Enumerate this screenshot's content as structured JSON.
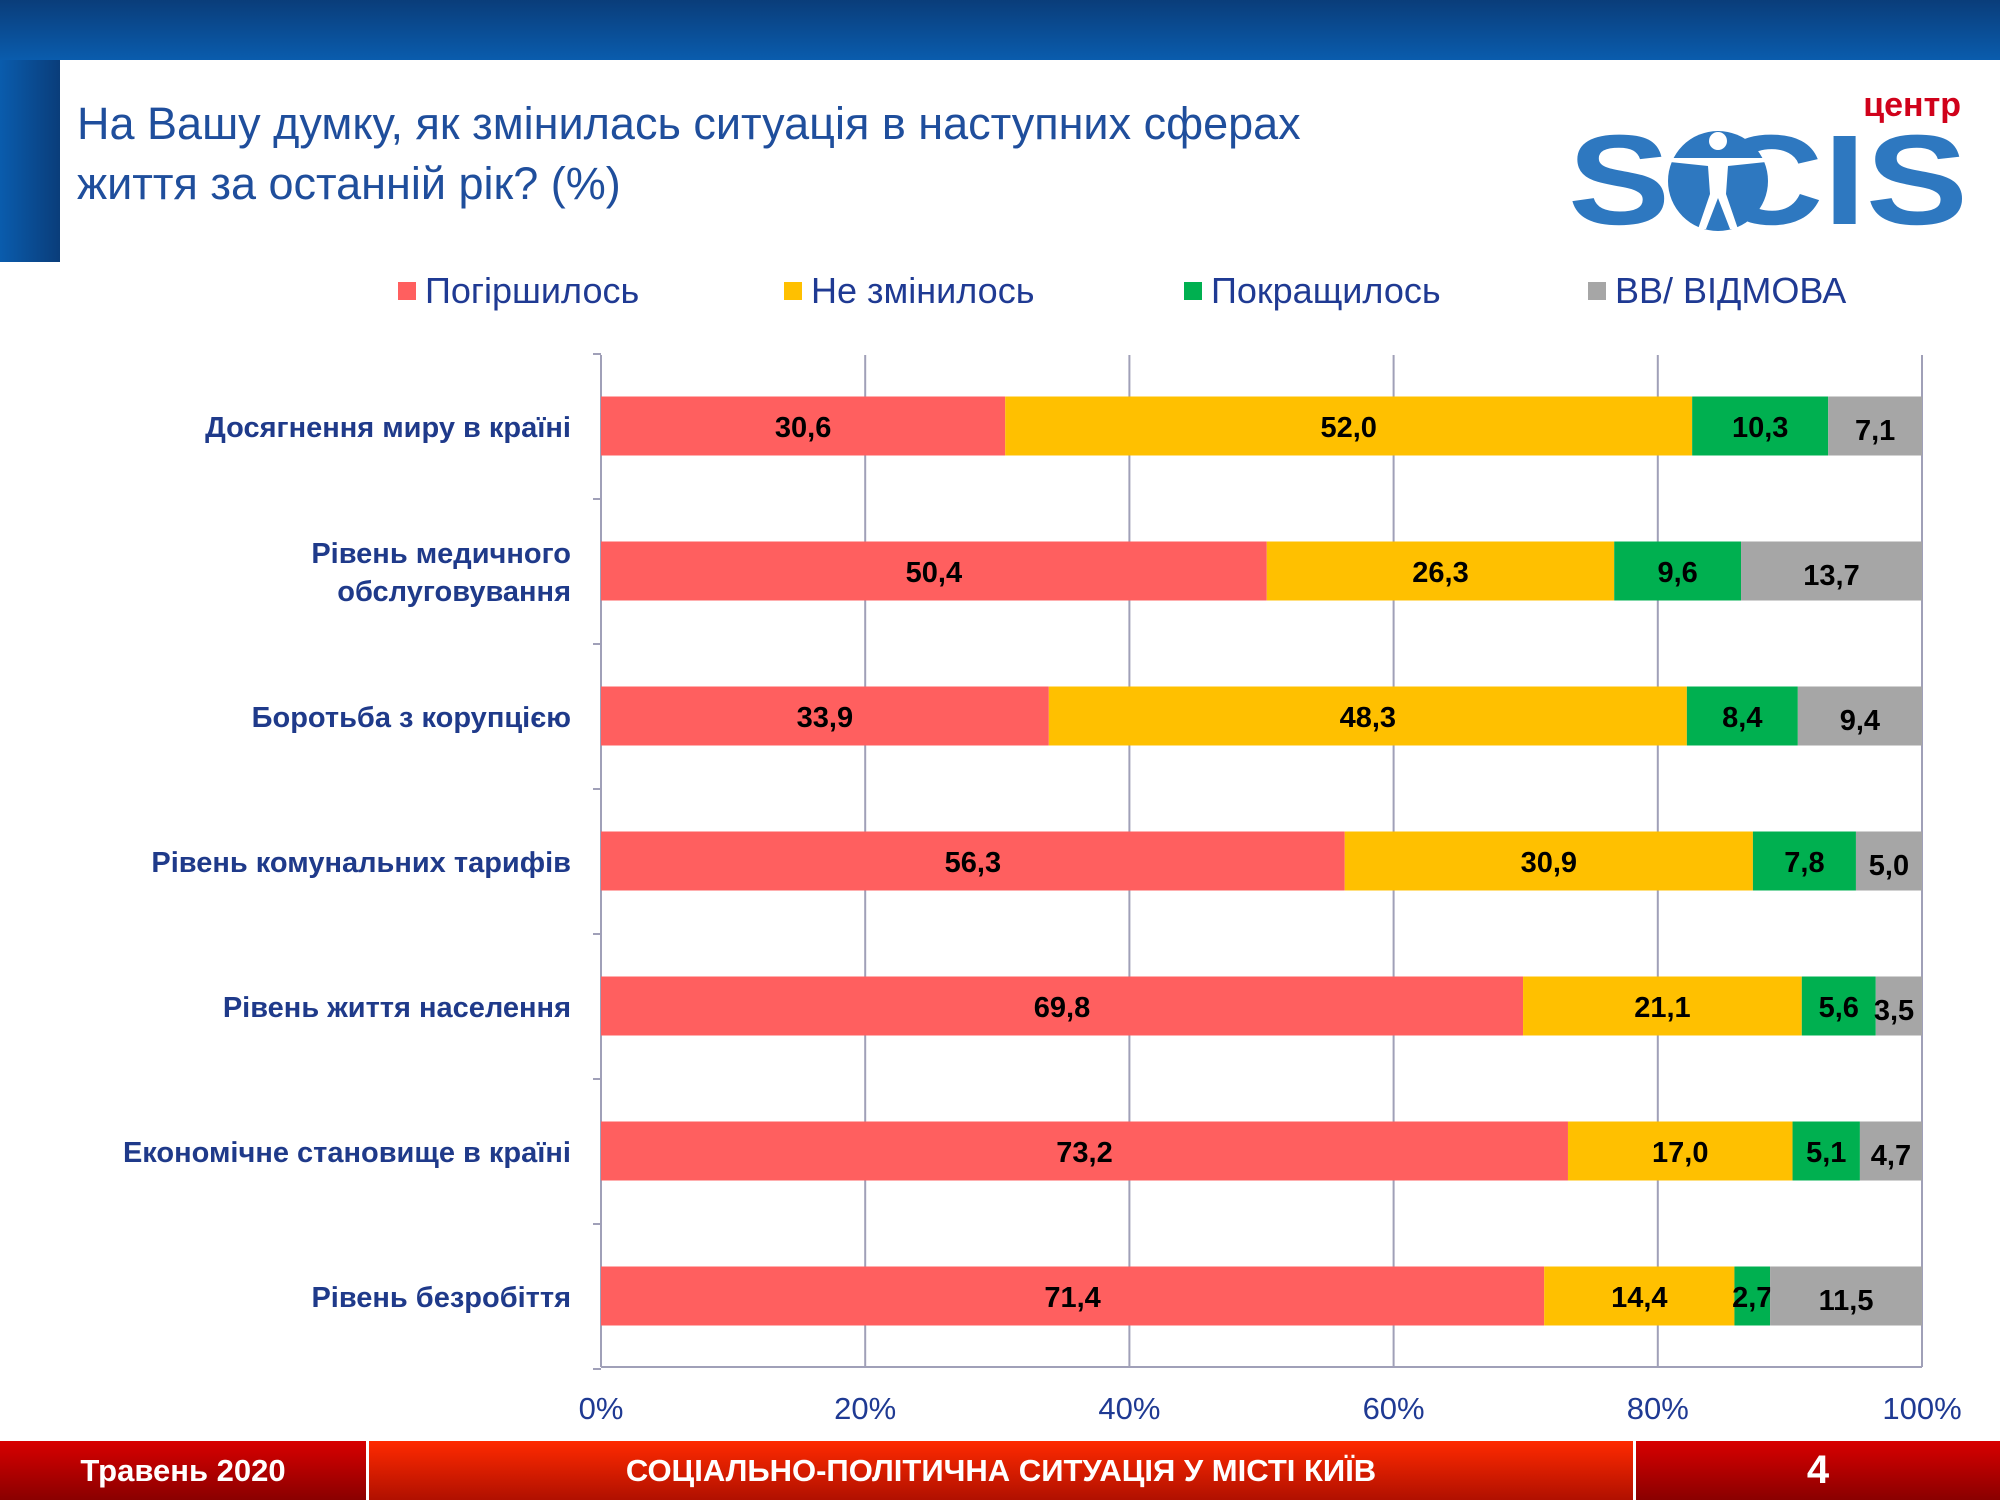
{
  "header": {
    "title_line1": "На Вашу думку, як змінилась ситуація в наступних сферах",
    "title_line2": "життя за останній рік? (%)"
  },
  "logo": {
    "text_main": "SOCIS",
    "text_top": "центр",
    "colors": {
      "main": "#2e78c0",
      "top": "#d0021b"
    }
  },
  "footer": {
    "date": "Травень 2020",
    "subject": "СОЦІАЛЬНО-ПОЛІТИЧНА СИТУАЦІЯ У МІСТІ КИЇВ",
    "page": "4"
  },
  "chart_data": {
    "type": "bar",
    "orientation": "horizontal",
    "stacked": "percent",
    "title": "",
    "categories": [
      "Досягнення миру в країні",
      "Рівень медичного обслуговування",
      "Боротьба з корупцією",
      "Рівень комунальних тарифів",
      "Рівень життя населення",
      "Економічне становище в країні",
      "Рівень безробіття"
    ],
    "series": [
      {
        "name": "Погіршилось",
        "color": "#ff5f5f",
        "values": [
          30.6,
          50.4,
          33.9,
          56.3,
          69.8,
          73.2,
          71.4
        ],
        "labels": [
          "30,6",
          "50,4",
          "33,9",
          "56,3",
          "69,8",
          "73,2",
          "71,4"
        ]
      },
      {
        "name": "Не змінилось",
        "color": "#ffc000",
        "values": [
          52.0,
          26.3,
          48.3,
          30.9,
          21.1,
          17.0,
          14.4
        ],
        "labels": [
          "52,0",
          "26,3",
          "48,3",
          "30,9",
          "21,1",
          "17,0",
          "14,4"
        ]
      },
      {
        "name": "Покращилось",
        "color": "#00b050",
        "values": [
          10.3,
          9.6,
          8.4,
          7.8,
          5.6,
          5.1,
          2.7
        ],
        "labels": [
          "10,3",
          "9,6",
          "8,4",
          "7,8",
          "5,6",
          "5,1",
          "2,7"
        ]
      },
      {
        "name": "ВВ/ ВІДМОВА",
        "color": "#a6a6a6",
        "values": [
          7.1,
          13.7,
          9.4,
          5.0,
          3.5,
          4.7,
          11.5
        ],
        "labels": [
          "7,1",
          "13,7",
          "9,4",
          "5,0",
          "3,5",
          "4,7",
          "11,5"
        ]
      }
    ],
    "xlim": [
      0,
      100
    ],
    "xticks": [
      "0%",
      "20%",
      "40%",
      "60%",
      "80%",
      "100%"
    ],
    "grid": true,
    "legend": "top"
  }
}
